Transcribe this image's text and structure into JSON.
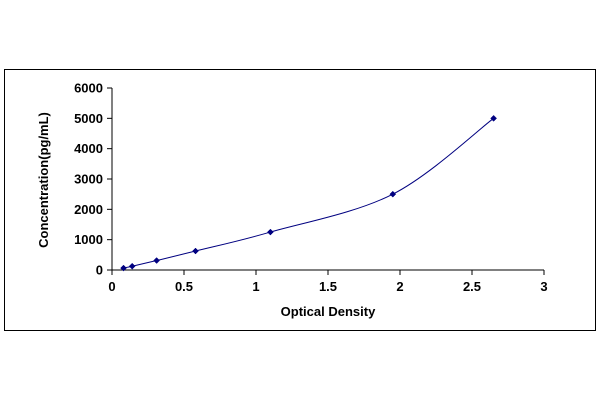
{
  "chart_data": {
    "type": "scatter",
    "xlabel": "Optical Density",
    "ylabel": "Concentration(pg/mL)",
    "xlim": [
      0,
      3
    ],
    "ylim": [
      0,
      6000
    ],
    "xticks": [
      "0",
      "0.5",
      "1",
      "1.5",
      "2",
      "2.5",
      "3"
    ],
    "yticks": [
      "0",
      "1000",
      "2000",
      "3000",
      "4000",
      "5000",
      "6000"
    ],
    "grid": false,
    "legend": "none",
    "marker_color": "#000080",
    "line_color": "#000080",
    "series": [
      {
        "x": [
          0.08,
          0.14,
          0.31,
          0.58,
          1.1,
          1.95,
          2.65
        ],
        "y": [
          62.5,
          125,
          312,
          625,
          1250,
          2500,
          5000
        ]
      }
    ]
  }
}
